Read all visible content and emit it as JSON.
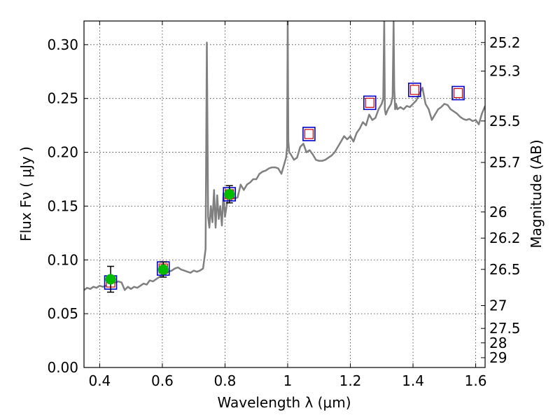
{
  "chart_data": {
    "type": "line",
    "xlabel": "Wavelength  λ (μm)",
    "ylabel": "Flux  Fν  ( μJy )",
    "y2label": "Magnitude (AB)",
    "xlim": [
      0.35,
      1.63
    ],
    "ylim": [
      0.0,
      0.322
    ],
    "grid": true,
    "x_ticks": [
      0.4,
      0.6,
      0.8,
      1.0,
      1.2,
      1.4,
      1.6
    ],
    "x_tick_labels": [
      "0.4",
      "0.6",
      "0.8",
      "1",
      "1.2",
      "1.4",
      "1.6"
    ],
    "y_ticks": [
      0.0,
      0.05,
      0.1,
      0.15,
      0.2,
      0.25,
      0.3
    ],
    "y_tick_labels": [
      "0.00",
      "0.05",
      "0.10",
      "0.15",
      "0.20",
      "0.25",
      "0.30"
    ],
    "y2_ticks": [
      {
        "mag": 25.2,
        "label": "25.2"
      },
      {
        "mag": 25.3,
        "label": "25.3"
      },
      {
        "mag": 25.5,
        "label": "25.5"
      },
      {
        "mag": 25.7,
        "label": "25.7"
      },
      {
        "mag": 26.0,
        "label": "26"
      },
      {
        "mag": 26.2,
        "label": "26.2"
      },
      {
        "mag": 26.5,
        "label": "26.5"
      },
      {
        "mag": 27.0,
        "label": "27"
      },
      {
        "mag": 27.5,
        "label": "27.5"
      },
      {
        "mag": 28.0,
        "label": "28"
      },
      {
        "mag": 29.0,
        "label": "29"
      }
    ],
    "spectrum": {
      "color": "#808080",
      "x": [
        0.35,
        0.36,
        0.37,
        0.38,
        0.39,
        0.4,
        0.41,
        0.42,
        0.43,
        0.44,
        0.45,
        0.46,
        0.47,
        0.48,
        0.49,
        0.5,
        0.51,
        0.52,
        0.53,
        0.54,
        0.55,
        0.56,
        0.57,
        0.58,
        0.59,
        0.6,
        0.61,
        0.62,
        0.63,
        0.64,
        0.65,
        0.66,
        0.67,
        0.68,
        0.69,
        0.7,
        0.71,
        0.72,
        0.73,
        0.738,
        0.742,
        0.746,
        0.75,
        0.755,
        0.76,
        0.765,
        0.77,
        0.775,
        0.78,
        0.785,
        0.79,
        0.795,
        0.8,
        0.805,
        0.81,
        0.815,
        0.82,
        0.825,
        0.83,
        0.84,
        0.85,
        0.86,
        0.87,
        0.88,
        0.89,
        0.9,
        0.91,
        0.92,
        0.93,
        0.94,
        0.95,
        0.96,
        0.97,
        0.98,
        0.99,
        0.995,
        0.998,
        1.0,
        1.002,
        1.005,
        1.01,
        1.02,
        1.03,
        1.04,
        1.05,
        1.06,
        1.07,
        1.08,
        1.09,
        1.1,
        1.11,
        1.12,
        1.13,
        1.14,
        1.15,
        1.16,
        1.17,
        1.18,
        1.19,
        1.2,
        1.21,
        1.22,
        1.23,
        1.24,
        1.25,
        1.26,
        1.27,
        1.28,
        1.29,
        1.3,
        1.305,
        1.308,
        1.31,
        1.313,
        1.32,
        1.33,
        1.335,
        1.338,
        1.34,
        1.343,
        1.346,
        1.35,
        1.36,
        1.37,
        1.38,
        1.39,
        1.4,
        1.41,
        1.42,
        1.43,
        1.44,
        1.45,
        1.46,
        1.47,
        1.48,
        1.49,
        1.5,
        1.51,
        1.52,
        1.53,
        1.54,
        1.55,
        1.56,
        1.57,
        1.58,
        1.59,
        1.6,
        1.61,
        1.62,
        1.63
      ],
      "y": [
        0.072,
        0.074,
        0.073,
        0.075,
        0.074,
        0.076,
        0.075,
        0.076,
        0.077,
        0.078,
        0.079,
        0.08,
        0.079,
        0.072,
        0.075,
        0.073,
        0.075,
        0.074,
        0.076,
        0.078,
        0.077,
        0.081,
        0.08,
        0.082,
        0.084,
        0.086,
        0.087,
        0.089,
        0.09,
        0.092,
        0.093,
        0.091,
        0.09,
        0.089,
        0.088,
        0.09,
        0.089,
        0.09,
        0.092,
        0.11,
        0.302,
        0.14,
        0.13,
        0.15,
        0.135,
        0.165,
        0.13,
        0.16,
        0.138,
        0.15,
        0.132,
        0.162,
        0.14,
        0.15,
        0.158,
        0.166,
        0.155,
        0.16,
        0.157,
        0.158,
        0.17,
        0.165,
        0.17,
        0.172,
        0.175,
        0.175,
        0.18,
        0.182,
        0.183,
        0.185,
        0.186,
        0.186,
        0.185,
        0.18,
        0.19,
        0.195,
        0.205,
        0.322,
        0.21,
        0.2,
        0.198,
        0.193,
        0.195,
        0.205,
        0.208,
        0.2,
        0.202,
        0.198,
        0.193,
        0.192,
        0.192,
        0.193,
        0.195,
        0.197,
        0.2,
        0.205,
        0.21,
        0.215,
        0.212,
        0.215,
        0.21,
        0.218,
        0.222,
        0.228,
        0.225,
        0.235,
        0.23,
        0.232,
        0.24,
        0.245,
        0.25,
        0.322,
        0.24,
        0.235,
        0.24,
        0.245,
        0.252,
        0.322,
        0.26,
        0.24,
        0.245,
        0.24,
        0.242,
        0.24,
        0.243,
        0.242,
        0.245,
        0.248,
        0.254,
        0.26,
        0.245,
        0.24,
        0.23,
        0.235,
        0.24,
        0.242,
        0.245,
        0.244,
        0.24,
        0.238,
        0.236,
        0.233,
        0.231,
        0.23,
        0.231,
        0.229,
        0.23,
        0.226,
        0.236,
        0.243
      ]
    },
    "photometry_boxes": {
      "points": [
        [
          0.435,
          0.079
        ],
        [
          0.603,
          0.092
        ],
        [
          0.814,
          0.161
        ],
        [
          1.068,
          0.217
        ],
        [
          1.262,
          0.246
        ],
        [
          1.405,
          0.258
        ],
        [
          1.544,
          0.255
        ]
      ],
      "outer_color": "#0000cc",
      "inner_color": "#cc0000"
    },
    "measured_points": {
      "color": "#00bb00",
      "points": [
        {
          "x": 0.435,
          "y": 0.082,
          "err": 0.012
        },
        {
          "x": 0.603,
          "y": 0.091,
          "err": 0.007
        },
        {
          "x": 0.814,
          "y": 0.161,
          "err": 0.008
        }
      ]
    }
  }
}
